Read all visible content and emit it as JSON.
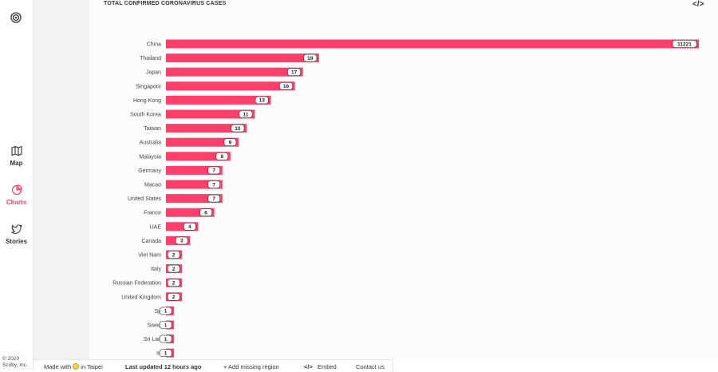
{
  "nav": {
    "items": [
      {
        "label": "Map",
        "icon": "map-icon"
      },
      {
        "label": "Charts",
        "icon": "pie-chart-icon",
        "active": true
      },
      {
        "label": "Stories",
        "icon": "twitter-icon"
      }
    ],
    "copyright": [
      "© 2020",
      "Scriby, Inc."
    ]
  },
  "header": {
    "embed_icon": "</>"
  },
  "footer": {
    "made_with": "Made with",
    "in_city": "in Taipei",
    "last_updated": "Last updated 12 hours ago",
    "add_region": "+ Add missing region",
    "embed_icon": "</>",
    "embed": "Embed",
    "contact": "Contact us"
  },
  "colors": {
    "bar": "#ff3f6a",
    "accent": "#ff3f6a"
  },
  "chart_data": {
    "type": "bar",
    "orientation": "horizontal",
    "title": "TOTAL CONFIRMED CORONAVIRUS CASES",
    "categories": [
      "China",
      "Thailand",
      "Japan",
      "Singapore",
      "Hong Kong",
      "South Korea",
      "Taiwan",
      "Australia",
      "Malaysia",
      "Germany",
      "Macao",
      "United States",
      "France",
      "UAE",
      "Canada",
      "Viet Nam",
      "Italy",
      "Russian Federation",
      "United Kingdom",
      "Sp",
      "Swed",
      "Sri Lan",
      "In"
    ],
    "values": [
      11221,
      19,
      17,
      16,
      13,
      11,
      10,
      9,
      8,
      7,
      7,
      7,
      6,
      4,
      3,
      2,
      2,
      2,
      2,
      1,
      1,
      1,
      1
    ],
    "scale": "broken (China bar truncated to full width)"
  }
}
